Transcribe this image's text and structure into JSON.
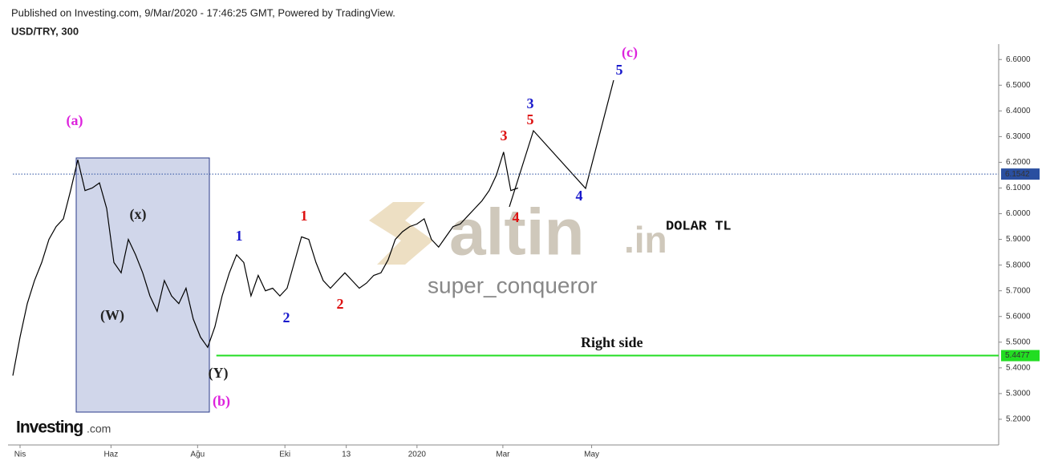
{
  "chart_data": {
    "type": "line",
    "header": "Published on Investing.com, 9/Mar/2020 - 17:46:25 GMT, Powered by TradingView.",
    "title": "USD/TRY, 300",
    "x": [
      0,
      1,
      2,
      3,
      4,
      5,
      6,
      7,
      8,
      9,
      10,
      11,
      12,
      13,
      14,
      15,
      16,
      17,
      18,
      19,
      20,
      21,
      22,
      23,
      24,
      25,
      26,
      27,
      28,
      29,
      30,
      31,
      32,
      33,
      34,
      35,
      36,
      37,
      38,
      39,
      40,
      41,
      42,
      43,
      44,
      45,
      46,
      47,
      48,
      49,
      50,
      51,
      52,
      53,
      54,
      55,
      56,
      57,
      58,
      59,
      60,
      61,
      62,
      63,
      64,
      65,
      66,
      67,
      68,
      69,
      70
    ],
    "series": [
      {
        "name": "USD/TRY",
        "color": "#000000",
        "values": [
          5.37,
          5.52,
          5.65,
          5.74,
          5.81,
          5.9,
          5.95,
          5.98,
          6.09,
          6.21,
          6.09,
          6.1,
          6.12,
          6.02,
          5.81,
          5.77,
          5.9,
          5.84,
          5.77,
          5.68,
          5.62,
          5.74,
          5.68,
          5.65,
          5.71,
          5.59,
          5.52,
          5.48,
          5.56,
          5.68,
          5.77,
          5.84,
          5.81,
          5.68,
          5.76,
          5.7,
          5.71,
          5.68,
          5.71,
          5.81,
          5.91,
          5.9,
          5.81,
          5.74,
          5.71,
          5.74,
          5.77,
          5.74,
          5.71,
          5.73,
          5.76,
          5.77,
          5.82,
          5.9,
          5.93,
          5.95,
          5.96,
          5.98,
          5.9,
          5.87,
          5.91,
          5.95,
          5.96,
          5.99,
          6.02,
          6.05,
          6.09,
          6.15,
          6.24,
          6.09,
          6.1
        ]
      }
    ],
    "xlim": [
      0,
      136.6
    ],
    "xticks": [
      {
        "value": 1,
        "label": "Nis"
      },
      {
        "value": 13.6,
        "label": "Haz"
      },
      {
        "value": 25.6,
        "label": "Ağu"
      },
      {
        "value": 37.7,
        "label": "Eki"
      },
      {
        "value": 46.2,
        "label": "13"
      },
      {
        "value": 56,
        "label": "2020"
      },
      {
        "value": 67.9,
        "label": "Mar"
      },
      {
        "value": 80.2,
        "label": "May"
      }
    ],
    "ylim": [
      5.1,
      6.66
    ],
    "yticks": [
      {
        "value": 5.2,
        "label": "5.2000"
      },
      {
        "value": 5.3,
        "label": "5.3000"
      },
      {
        "value": 5.4,
        "label": "5.4000"
      },
      {
        "value": 5.5,
        "label": "5.5000"
      },
      {
        "value": 5.6,
        "label": "5.6000"
      },
      {
        "value": 5.7,
        "label": "5.7000"
      },
      {
        "value": 5.8,
        "label": "5.8000"
      },
      {
        "value": 5.9,
        "label": "5.9000"
      },
      {
        "value": 6.0,
        "label": "6.0000"
      },
      {
        "value": 6.1,
        "label": "6.1000"
      },
      {
        "value": 6.2,
        "label": "6.2000"
      },
      {
        "value": 6.3,
        "label": "6.3000"
      },
      {
        "value": 6.4,
        "label": "6.4000"
      },
      {
        "value": 6.5,
        "label": "6.5000"
      },
      {
        "value": 6.6,
        "label": "6.6000"
      }
    ],
    "ref_lines": [
      {
        "value": 6.1542,
        "label": "6.1542",
        "color": "#2a4fa0",
        "style": "dotted",
        "start": 0
      },
      {
        "value": 5.4477,
        "label": "5.4477",
        "color": "#22dd22",
        "style": "solid",
        "start": 28.2
      }
    ],
    "annotations": [
      {
        "text": "(a)",
        "color": "#dd22dd"
      },
      {
        "text": "(x)",
        "color": "#222222"
      },
      {
        "text": "(W)",
        "color": "#222222"
      },
      {
        "text": "(Y)",
        "color": "#222222"
      },
      {
        "text": "(b)",
        "color": "#dd22dd"
      },
      {
        "text": "1",
        "color": "#1a1acc"
      },
      {
        "text": "2",
        "color": "#1a1acc"
      },
      {
        "text": "1",
        "color": "#dd1111"
      },
      {
        "text": "2",
        "color": "#dd1111"
      },
      {
        "text": "3",
        "color": "#dd1111"
      },
      {
        "text": "4",
        "color": "#dd1111"
      },
      {
        "text": "3",
        "color": "#1a1acc"
      },
      {
        "text": "5",
        "color": "#dd1111"
      },
      {
        "text": "4",
        "color": "#1a1acc"
      },
      {
        "text": "5",
        "color": "#1a1acc"
      },
      {
        "text": "(c)",
        "color": "#dd22dd"
      }
    ],
    "labels": {
      "dolar": "DOLAR TL",
      "right": "Right side",
      "watermark": "altin",
      "watermark_suffix": ".in",
      "author": "super_conqueror",
      "logo": "Investing",
      "logo_suffix": ".com"
    }
  }
}
